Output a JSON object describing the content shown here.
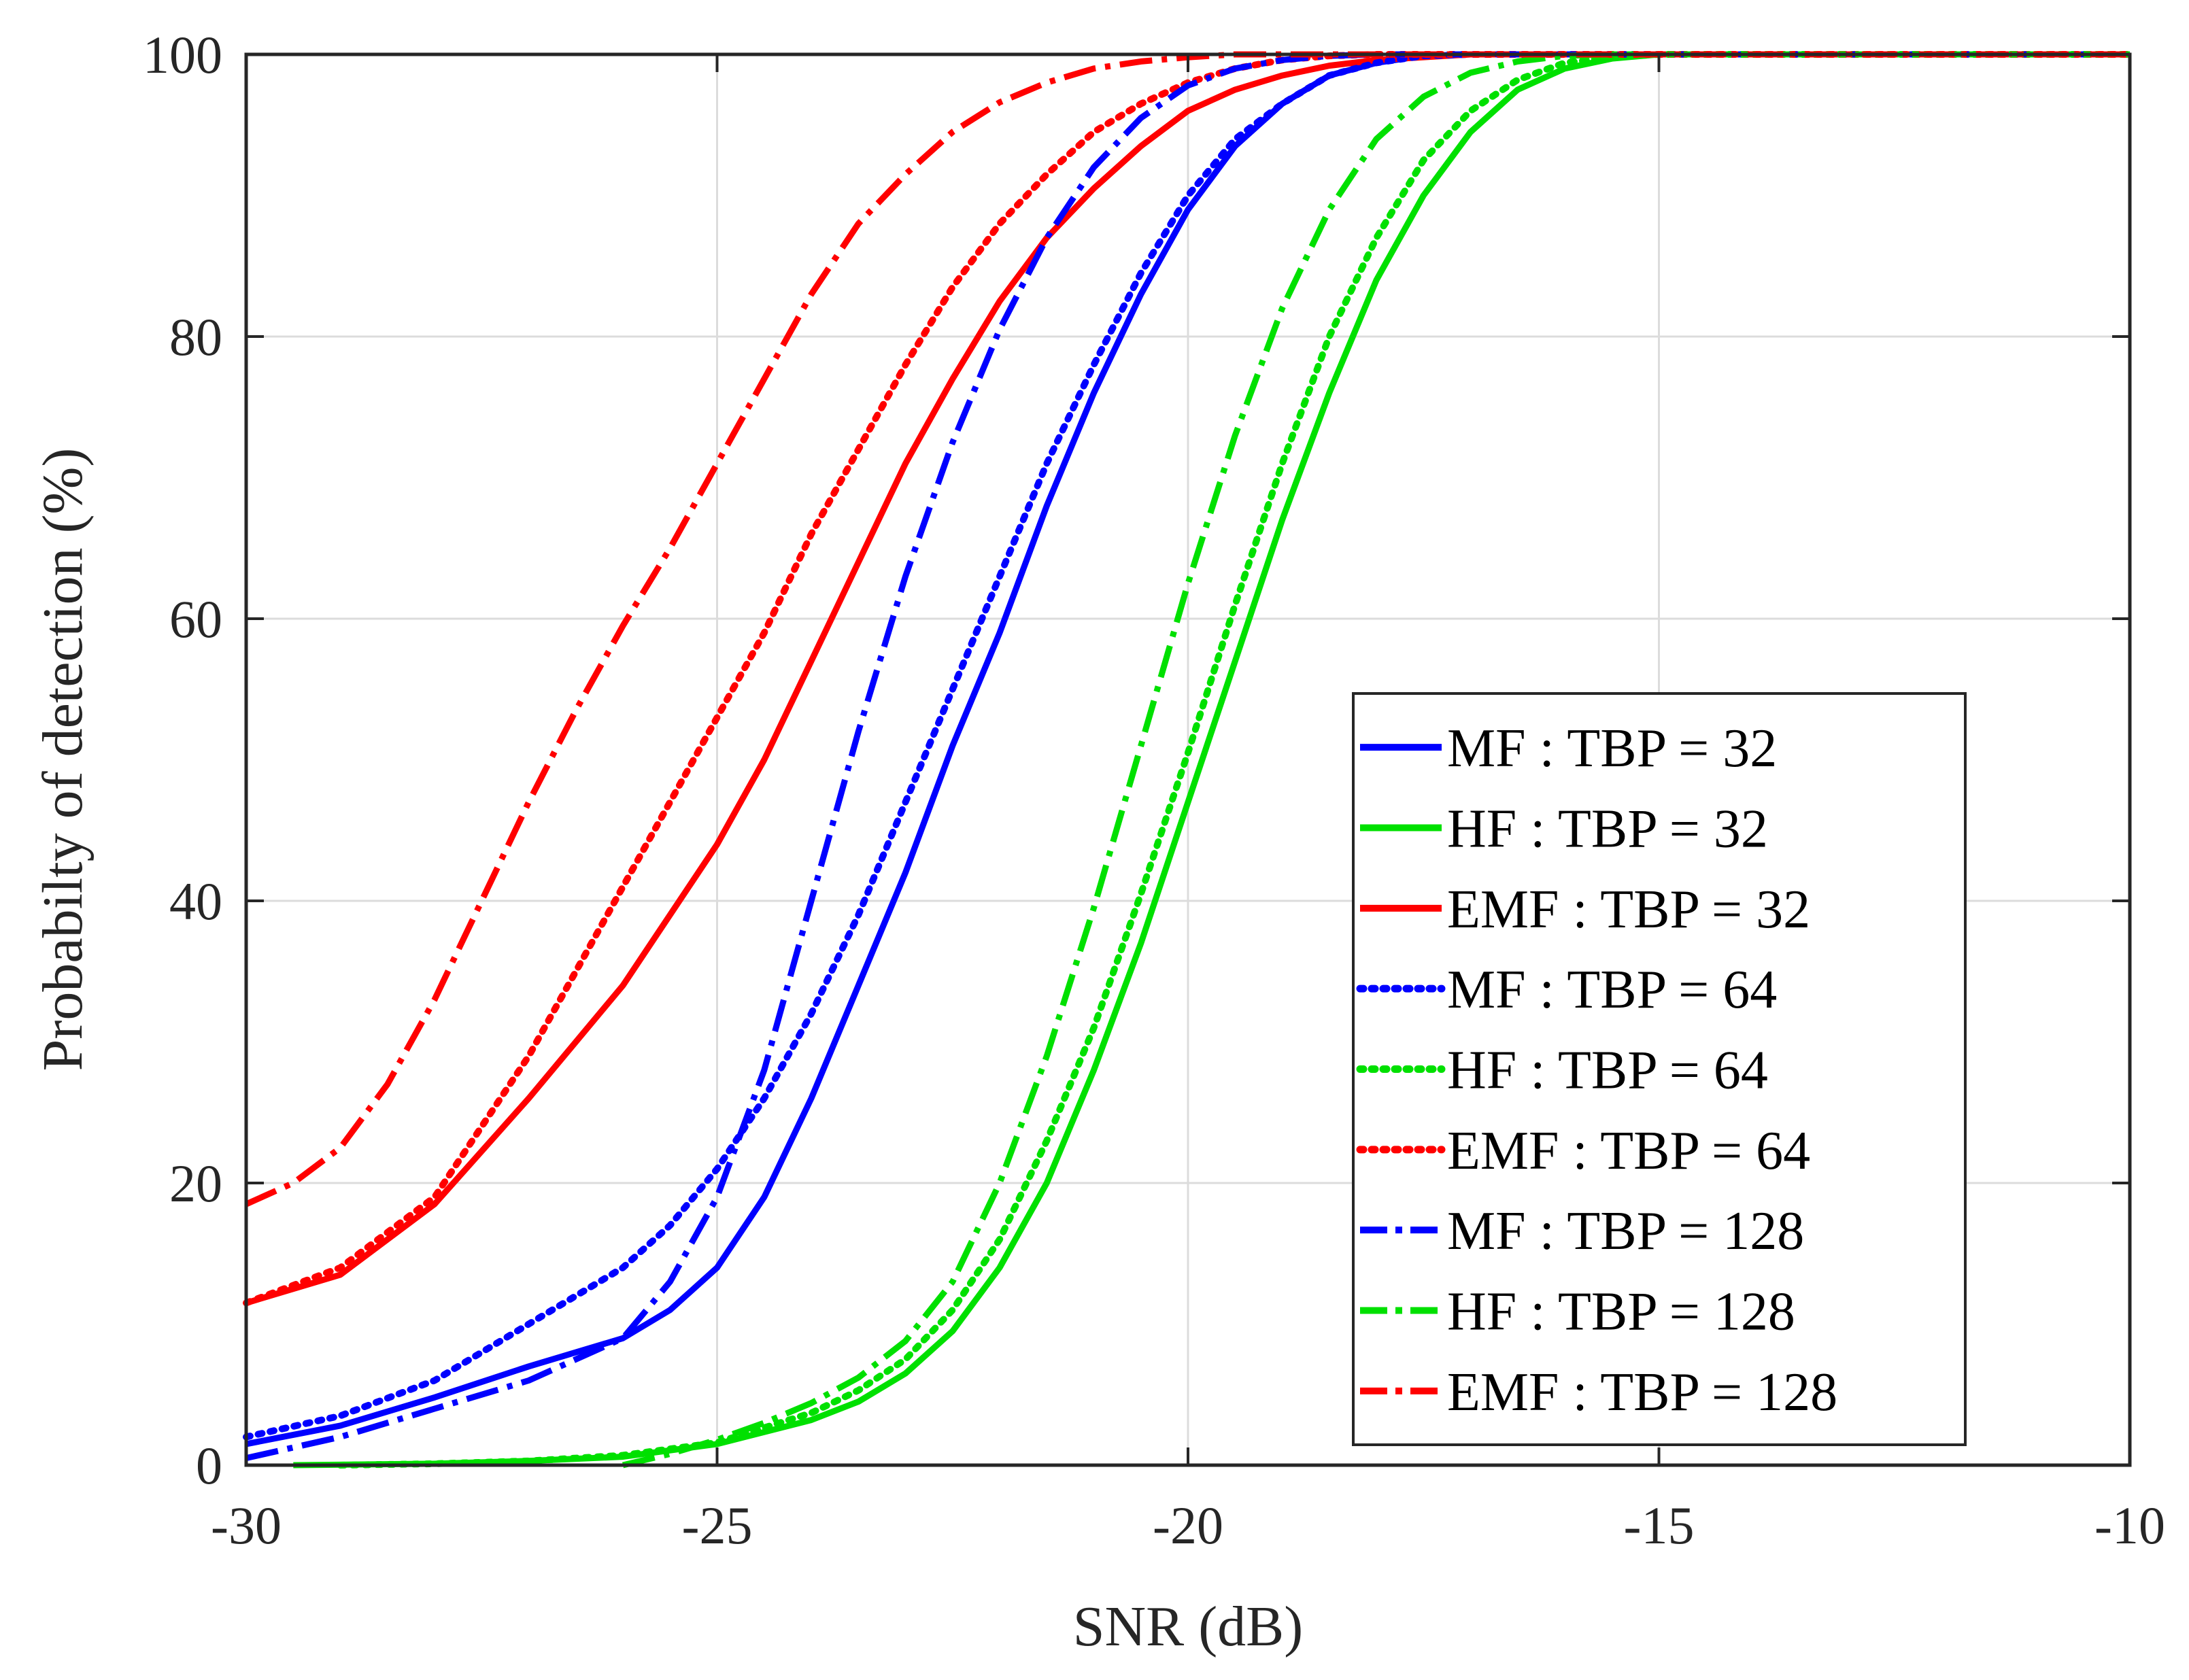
{
  "chart_data": {
    "type": "line",
    "title": "",
    "xlabel": "SNR (dB)",
    "ylabel": "Probabilty of detection (%)",
    "xlim": [
      -30,
      -10
    ],
    "ylim": [
      0,
      100
    ],
    "xticks": [
      -30,
      -25,
      -20,
      -15,
      -10
    ],
    "yticks": [
      0,
      20,
      40,
      60,
      80,
      100
    ],
    "xtick_labels": [
      "-30",
      "-25",
      "-20",
      "-15",
      "-10"
    ],
    "ytick_labels": [
      "0",
      "20",
      "40",
      "60",
      "80",
      "100"
    ],
    "grid": true,
    "legend_position": "bottom-right",
    "series": [
      {
        "name": "MF : TBP = 32",
        "color": "#0000ff",
        "style": "solid",
        "x": [
          -30,
          -29,
          -28,
          -27,
          -26,
          -25.5,
          -25,
          -24.5,
          -24,
          -23.5,
          -23,
          -22.5,
          -22,
          -21.5,
          -21,
          -20.5,
          -20,
          -19.5,
          -19,
          -18.5,
          -18,
          -17.5,
          -17,
          -16,
          -15,
          -10
        ],
        "y": [
          1.5,
          2.8,
          4.8,
          7,
          9,
          11,
          14,
          19,
          26,
          34,
          42,
          51,
          59,
          68,
          76,
          83,
          89,
          93.5,
          96.5,
          98.5,
          99.4,
          99.9,
          100,
          100,
          100,
          100
        ]
      },
      {
        "name": "HF : TBP = 32",
        "color": "#00e000",
        "style": "solid",
        "x": [
          -29.5,
          -28,
          -27,
          -26,
          -25,
          -24,
          -23.5,
          -23,
          -22.5,
          -22,
          -21.5,
          -21,
          -20.5,
          -20,
          -19.5,
          -19,
          -18.5,
          -18,
          -17.5,
          -17,
          -16.5,
          -16,
          -15.5,
          -15,
          -10
        ],
        "y": [
          0,
          0.1,
          0.3,
          0.6,
          1.5,
          3.2,
          4.5,
          6.5,
          9.5,
          14,
          20,
          28,
          37,
          47,
          57,
          67,
          76,
          84,
          90,
          94.5,
          97.5,
          99,
          99.7,
          100,
          100
        ]
      },
      {
        "name": "EMF : TBP = 32",
        "color": "#ff0000",
        "style": "solid",
        "x": [
          -30,
          -29,
          -28,
          -27,
          -26,
          -25,
          -24.5,
          -24,
          -23.5,
          -23,
          -22.5,
          -22,
          -21.5,
          -21,
          -20.5,
          -20,
          -19.5,
          -19,
          -18.5,
          -18,
          -17,
          -16,
          -10
        ],
        "y": [
          11.5,
          13.5,
          18.5,
          26,
          34,
          44,
          50,
          57,
          64,
          71,
          77,
          82.5,
          87,
          90.5,
          93.5,
          96,
          97.5,
          98.5,
          99.2,
          99.6,
          100,
          100,
          100
        ]
      },
      {
        "name": "MF : TBP = 64",
        "color": "#0000ff",
        "style": "dotted",
        "x": [
          -30,
          -29,
          -28,
          -27,
          -26,
          -25.5,
          -25,
          -24.5,
          -24,
          -23.5,
          -23,
          -22.5,
          -22,
          -21.5,
          -21,
          -20.5,
          -20,
          -19.5,
          -19,
          -18.5,
          -18,
          -17.5,
          -17,
          -16,
          -10
        ],
        "y": [
          2,
          3.5,
          6,
          10,
          14,
          17,
          21,
          26,
          32,
          39,
          47,
          55,
          63,
          71,
          78,
          84.5,
          90,
          94,
          96.5,
          98.5,
          99.4,
          99.9,
          100,
          100,
          100
        ]
      },
      {
        "name": "HF : TBP = 64",
        "color": "#00e000",
        "style": "dotted",
        "x": [
          -29,
          -28,
          -27,
          -26,
          -25,
          -24,
          -23.5,
          -23,
          -22.5,
          -22,
          -21.5,
          -21,
          -20.5,
          -20,
          -19.5,
          -19,
          -18.5,
          -18,
          -17.5,
          -17,
          -16.5,
          -16,
          -15.5,
          -15,
          -14,
          -13,
          -10
        ],
        "y": [
          0,
          0.1,
          0.3,
          0.7,
          1.6,
          3.7,
          5.3,
          7.5,
          11,
          16,
          23,
          31,
          40.5,
          50.5,
          61,
          71,
          80,
          87,
          92.5,
          96,
          98.2,
          99.4,
          99.8,
          100,
          100,
          100,
          100
        ]
      },
      {
        "name": "EMF : TBP = 64",
        "color": "#ff0000",
        "style": "dotted",
        "x": [
          -30,
          -29,
          -28,
          -27,
          -26,
          -25,
          -24.5,
          -24,
          -23.5,
          -23,
          -22.5,
          -22,
          -21.5,
          -21,
          -20.5,
          -20,
          -19.5,
          -19,
          -18.5,
          -18,
          -17,
          -16,
          -10
        ],
        "y": [
          11.5,
          14,
          19,
          29,
          41,
          53,
          59,
          66,
          72,
          78,
          83.5,
          88,
          91.5,
          94.5,
          96.5,
          98,
          99,
          99.6,
          99.9,
          100,
          100,
          100,
          100
        ]
      },
      {
        "name": "MF : TBP = 128",
        "color": "#0000ff",
        "style": "dashdot",
        "x": [
          -30,
          -29,
          -28,
          -27,
          -26,
          -25.5,
          -25,
          -24.5,
          -24,
          -23.5,
          -23,
          -22.5,
          -22,
          -21.5,
          -21,
          -20.5,
          -20,
          -19.5,
          -19,
          -18.5,
          -18,
          -17,
          -16,
          -10
        ],
        "y": [
          0.5,
          2,
          4,
          6,
          9,
          13,
          19,
          28,
          40,
          52,
          63,
          72.5,
          80.5,
          87,
          92,
          95.5,
          97.8,
          99,
          99.6,
          99.9,
          100,
          100,
          100,
          100
        ]
      },
      {
        "name": "HF : TBP = 128",
        "color": "#00e000",
        "style": "dashdot",
        "x": [
          -26,
          -25.5,
          -25,
          -24.5,
          -24,
          -23.5,
          -23,
          -22.5,
          -22,
          -21.5,
          -21,
          -20.5,
          -20,
          -19.5,
          -19,
          -18.5,
          -18,
          -17.5,
          -17,
          -16.5,
          -16,
          -15.5,
          -15,
          -10
        ],
        "y": [
          0,
          0.8,
          1.8,
          3,
          4.4,
          6.2,
          8.8,
          13,
          20,
          29,
          39.5,
          51,
          62.5,
          73,
          82,
          89,
          94,
          97,
          98.7,
          99.5,
          99.9,
          100,
          100,
          100
        ]
      },
      {
        "name": "EMF : TBP = 128",
        "color": "#ff0000",
        "style": "dashdot",
        "x": [
          -30,
          -29.5,
          -29,
          -28.5,
          -28,
          -27.5,
          -27,
          -26.5,
          -26,
          -25.5,
          -25,
          -24.5,
          -24,
          -23.5,
          -23,
          -22.5,
          -22,
          -21.5,
          -21,
          -20.5,
          -20,
          -19.5,
          -19,
          -18,
          -10
        ],
        "y": [
          18.5,
          20,
          22.5,
          27,
          33,
          40,
          47,
          53.5,
          59.5,
          65,
          71,
          77,
          83,
          88,
          91.5,
          94.5,
          96.6,
          98,
          99,
          99.5,
          99.8,
          100,
          100,
          100,
          100
        ]
      }
    ]
  }
}
